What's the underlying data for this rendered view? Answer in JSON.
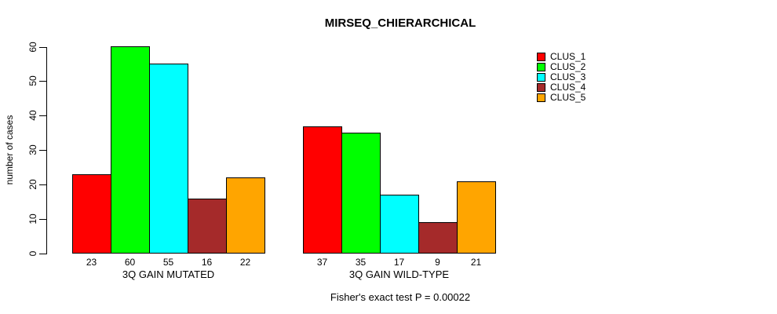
{
  "chart_data": {
    "type": "bar",
    "title": "MIRSEQ_CHIERARCHICAL",
    "ylabel": "number of cases",
    "xlabel": "",
    "ylim": [
      0,
      60
    ],
    "yticks": [
      0,
      10,
      20,
      30,
      40,
      50,
      60
    ],
    "grid": false,
    "legend_position": "right",
    "categories": [
      "3Q GAIN MUTATED",
      "3Q GAIN WILD-TYPE"
    ],
    "series": [
      {
        "name": "CLUS_1",
        "color": "#ff0000",
        "values": [
          23,
          37
        ]
      },
      {
        "name": "CLUS_2",
        "color": "#00ff00",
        "values": [
          60,
          35
        ]
      },
      {
        "name": "CLUS_3",
        "color": "#00ffff",
        "values": [
          55,
          17
        ]
      },
      {
        "name": "CLUS_4",
        "color": "#a52a2a",
        "values": [
          16,
          9
        ]
      },
      {
        "name": "CLUS_5",
        "color": "#ffa500",
        "values": [
          22,
          21
        ]
      }
    ],
    "bar_value_labels": {
      "3Q GAIN MUTATED": [
        23,
        60,
        55,
        16,
        22
      ],
      "3Q GAIN WILD-TYPE": [
        37,
        35,
        17,
        9,
        21
      ]
    },
    "note": "Fisher's exact test P = 0.00022"
  }
}
